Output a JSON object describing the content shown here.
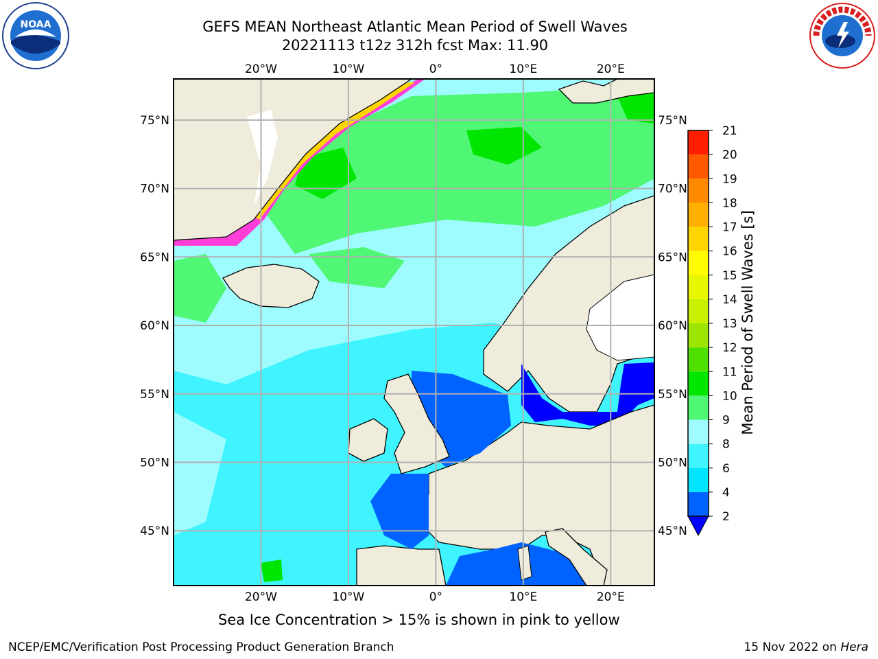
{
  "header": {
    "title_line1": "GEFS MEAN Northeast Atlantic Mean Period of Swell Waves",
    "title_line2": "20221113 t12z 312h fcst   Max: 11.90"
  },
  "logos": {
    "left": {
      "name": "noaa-logo",
      "text": "NOAA",
      "ring_text": "NATIONAL OCEANIC AND ATMOSPHERIC ADMINISTRATION · U.S. DEPARTMENT OF COMMERCE"
    },
    "right": {
      "name": "nws-logo",
      "ring_text": "NATIONAL WEATHER SERVICE"
    }
  },
  "map": {
    "projection": "lat-lon",
    "lon_range": [
      -30,
      25
    ],
    "lat_range": [
      41,
      78
    ],
    "lon_ticks": [
      {
        "lon": -20,
        "label": "20°W"
      },
      {
        "lon": -10,
        "label": "10°W"
      },
      {
        "lon": 0,
        "label": "0°"
      },
      {
        "lon": 10,
        "label": "10°E"
      },
      {
        "lon": 20,
        "label": "20°E"
      }
    ],
    "lat_ticks": [
      {
        "lat": 75,
        "label": "75°N"
      },
      {
        "lat": 70,
        "label": "70°N"
      },
      {
        "lat": 65,
        "label": "65°N"
      },
      {
        "lat": 60,
        "label": "60°N"
      },
      {
        "lat": 55,
        "label": "55°N"
      },
      {
        "lat": 50,
        "label": "50°N"
      },
      {
        "lat": 45,
        "label": "45°N"
      }
    ],
    "land_color": "#efecdc",
    "grid": true
  },
  "colorbar": {
    "label": "Mean Period of Swell Waves [s]",
    "levels": [
      "2",
      "4",
      "6",
      "8",
      "9",
      "10",
      "11",
      "12",
      "13",
      "14",
      "15",
      "16",
      "17",
      "18",
      "19",
      "20",
      "21"
    ],
    "colors": [
      "#0063ff",
      "#00e5ff",
      "#3ff4ff",
      "#9efcff",
      "#4ff775",
      "#00e600",
      "#4fe000",
      "#9ee600",
      "#c8f000",
      "#e6f700",
      "#fffb00",
      "#ffd500",
      "#ffb000",
      "#ff8a00",
      "#ff5900",
      "#ff1e00"
    ],
    "under_color": "#0000ff"
  },
  "caption": "Sea Ice Concentration > 15% is shown in pink to yellow",
  "footer": {
    "left": "NCEP/EMC/Verification Post Processing Product Generation Branch",
    "right_prefix": "15 Nov 2022 on ",
    "right_machine": "Hera"
  }
}
